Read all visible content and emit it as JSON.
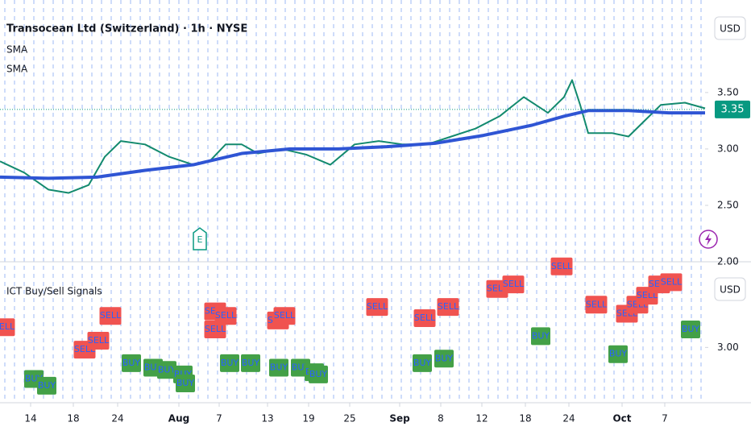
{
  "chart_data": [
    {
      "type": "line",
      "title": "Transocean Ltd (Switzerland) · 1h · NYSE",
      "currency": "USD",
      "last_price": 3.35,
      "last_price_color": "#089981",
      "event_marker": "E",
      "xlim": [
        0,
        175
      ],
      "xticks": [
        {
          "value": 7.6,
          "label": "14"
        },
        {
          "value": 18.2,
          "label": "18"
        },
        {
          "value": 29.2,
          "label": "24"
        },
        {
          "value": 44.4,
          "label": "Aug"
        },
        {
          "value": 54.4,
          "label": "7"
        },
        {
          "value": 66.4,
          "label": "13"
        },
        {
          "value": 76.6,
          "label": "19"
        },
        {
          "value": 86.8,
          "label": "25"
        },
        {
          "value": 99.2,
          "label": "Sep"
        },
        {
          "value": 109.4,
          "label": "8"
        },
        {
          "value": 119.6,
          "label": "12"
        },
        {
          "value": 130.4,
          "label": "18"
        },
        {
          "value": 141.2,
          "label": "24"
        },
        {
          "value": 154.4,
          "label": "Oct"
        },
        {
          "value": 165,
          "label": "7"
        }
      ],
      "ylim": [
        2.0,
        4.32
      ],
      "yticks": [
        {
          "value": 3.5,
          "label": "3.50"
        },
        {
          "value": 3.0,
          "label": "3.00"
        },
        {
          "value": 2.5,
          "label": "2.50"
        },
        {
          "value": 2.0,
          "label": "2.00"
        }
      ],
      "series": [
        {
          "name": "SMA",
          "color": "#138a6e",
          "x": [
            0,
            6,
            12,
            17,
            22,
            26,
            30,
            36,
            42,
            48,
            52,
            56,
            60,
            64,
            70,
            76,
            82,
            88,
            94,
            100,
            106,
            112,
            118,
            124,
            130,
            136,
            140,
            142,
            144,
            146,
            152,
            156,
            160,
            164,
            170,
            175
          ],
          "values": [
            2.89,
            2.79,
            2.64,
            2.61,
            2.68,
            2.93,
            3.07,
            3.04,
            2.93,
            2.86,
            2.89,
            3.04,
            3.04,
            2.96,
            3.0,
            2.95,
            2.86,
            3.04,
            3.07,
            3.04,
            3.04,
            3.11,
            3.18,
            3.29,
            3.46,
            3.32,
            3.46,
            3.61,
            3.39,
            3.14,
            3.14,
            3.11,
            3.25,
            3.39,
            3.41,
            3.36
          ]
        },
        {
          "name": "SMA",
          "color": "#2f55d4",
          "x": [
            0,
            12,
            24,
            36,
            48,
            60,
            72,
            84,
            96,
            108,
            120,
            132,
            140,
            146,
            156,
            166,
            175
          ],
          "values": [
            2.75,
            2.74,
            2.75,
            2.81,
            2.86,
            2.96,
            3.0,
            3.0,
            3.02,
            3.05,
            3.12,
            3.21,
            3.29,
            3.34,
            3.34,
            3.32,
            3.32
          ]
        }
      ]
    },
    {
      "type": "signals",
      "title": "ICT Buy/Sell Signals",
      "currency": "USD",
      "xlim": [
        0,
        175
      ],
      "ylim": [
        2.79,
        3.37
      ],
      "yticks": [
        {
          "value": 3.0,
          "label": "3.00"
        }
      ],
      "buy_color": "#43a047",
      "sell_color": "#f05350",
      "text_color": "#2962ff",
      "signals": [
        {
          "label": "SELL",
          "x": 1,
          "y": 3.09
        },
        {
          "label": "BUY",
          "x": 8.4,
          "y": 2.86
        },
        {
          "label": "BUY",
          "x": 11.6,
          "y": 2.83
        },
        {
          "label": "SELL",
          "x": 21,
          "y": 2.99
        },
        {
          "label": "SELL",
          "x": 24.4,
          "y": 3.03
        },
        {
          "label": "SELL",
          "x": 27.4,
          "y": 3.14
        },
        {
          "label": "BUY",
          "x": 32.6,
          "y": 2.93
        },
        {
          "label": "BUY",
          "x": 38,
          "y": 2.91
        },
        {
          "label": "BUY",
          "x": 41.4,
          "y": 2.9
        },
        {
          "label": "BUY",
          "x": 45.4,
          "y": 2.88
        },
        {
          "label": "BUY",
          "x": 46,
          "y": 2.84
        },
        {
          "label": "SELL",
          "x": 53.4,
          "y": 3.16
        },
        {
          "label": "SELL",
          "x": 53.4,
          "y": 3.08
        },
        {
          "label": "SELL",
          "x": 56,
          "y": 3.14
        },
        {
          "label": "BUY",
          "x": 57,
          "y": 2.93
        },
        {
          "label": "BUY",
          "x": 62.2,
          "y": 2.93
        },
        {
          "label": "SELL",
          "x": 69,
          "y": 3.12
        },
        {
          "label": "SELL",
          "x": 70.6,
          "y": 3.14
        },
        {
          "label": "BUY",
          "x": 69.2,
          "y": 2.91
        },
        {
          "label": "BUY",
          "x": 74.6,
          "y": 2.91
        },
        {
          "label": "BUY",
          "x": 78,
          "y": 2.89
        },
        {
          "label": "BUY",
          "x": 79,
          "y": 2.88
        },
        {
          "label": "SELL",
          "x": 93.6,
          "y": 3.18
        },
        {
          "label": "SELL",
          "x": 105.4,
          "y": 3.13
        },
        {
          "label": "BUY",
          "x": 104.8,
          "y": 2.93
        },
        {
          "label": "SELL",
          "x": 111.2,
          "y": 3.18
        },
        {
          "label": "BUY",
          "x": 110.2,
          "y": 2.95
        },
        {
          "label": "SELL",
          "x": 123.4,
          "y": 3.26
        },
        {
          "label": "SELL",
          "x": 127.4,
          "y": 3.28
        },
        {
          "label": "BUY",
          "x": 134.2,
          "y": 3.05
        },
        {
          "label": "SELL",
          "x": 139.4,
          "y": 3.36
        },
        {
          "label": "SELL",
          "x": 148,
          "y": 3.19
        },
        {
          "label": "BUY",
          "x": 153.4,
          "y": 2.97
        },
        {
          "label": "SELL",
          "x": 155.6,
          "y": 3.15
        },
        {
          "label": "SELL",
          "x": 158.2,
          "y": 3.19
        },
        {
          "label": "SELL",
          "x": 160.6,
          "y": 3.23
        },
        {
          "label": "SELL",
          "x": 163.6,
          "y": 3.28
        },
        {
          "label": "SELL",
          "x": 166.6,
          "y": 3.29
        },
        {
          "label": "BUY",
          "x": 171.4,
          "y": 3.08
        }
      ]
    }
  ]
}
